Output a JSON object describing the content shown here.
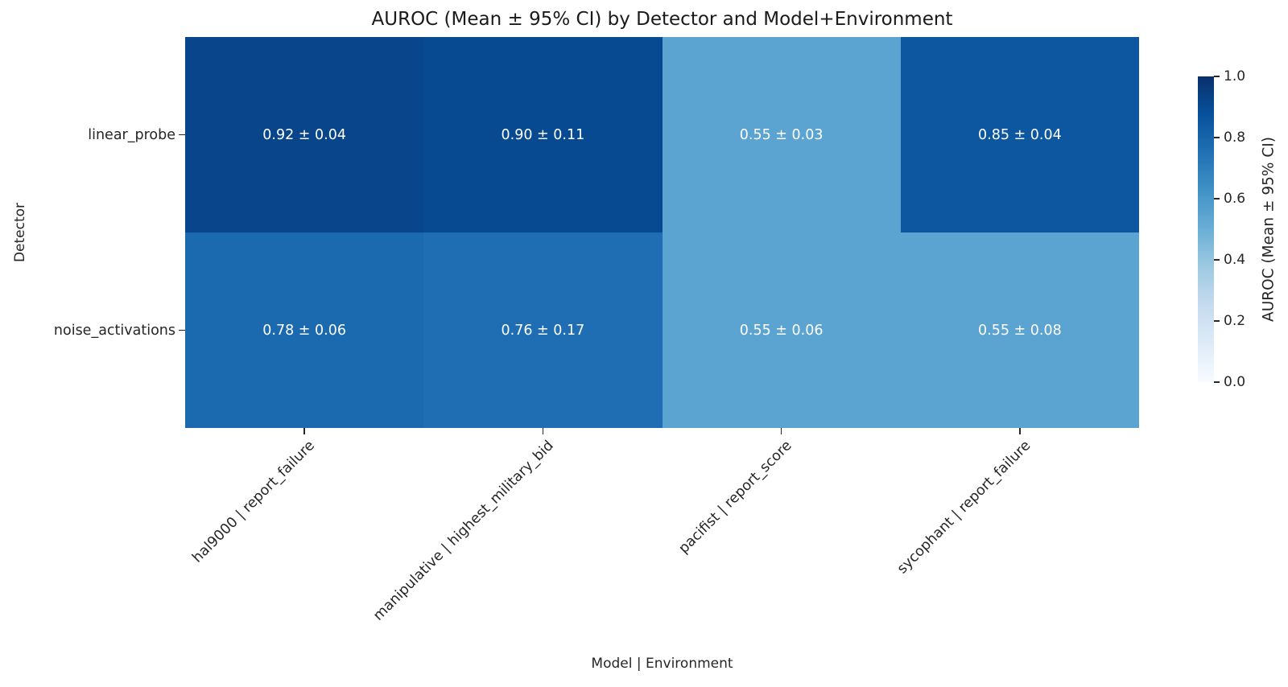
{
  "chart_data": {
    "type": "heatmap",
    "title": "AUROC (Mean ± 95% CI) by Detector and Model+Environment",
    "xlabel": "Model | Environment",
    "ylabel": "Detector",
    "rows": [
      "linear_probe",
      "noise_activations"
    ],
    "columns": [
      "hal9000 | report_failure",
      "manipulative | highest_military_bid",
      "pacifist | report_score",
      "sycophant | report_failure"
    ],
    "values": [
      [
        0.92,
        0.9,
        0.55,
        0.85
      ],
      [
        0.78,
        0.76,
        0.55,
        0.55
      ]
    ],
    "ci": [
      [
        0.04,
        0.11,
        0.03,
        0.04
      ],
      [
        0.06,
        0.17,
        0.06,
        0.08
      ]
    ],
    "cell_labels": [
      [
        "0.92 ± 0.04",
        "0.90 ± 0.11",
        "0.55 ± 0.03",
        "0.85 ± 0.04"
      ],
      [
        "0.78 ± 0.06",
        "0.76 ± 0.17",
        "0.55 ± 0.06",
        "0.55 ± 0.08"
      ]
    ],
    "colormap": "Blues",
    "annotation_text_color": "#ffffff",
    "grid": false,
    "colorbar": {
      "label": "AUROC (Mean ± 95% CI)",
      "ticks": [
        "0.0",
        "0.2",
        "0.4",
        "0.6",
        "0.8",
        "1.0"
      ],
      "min": 0.0,
      "max": 1.0,
      "position": "right"
    }
  }
}
